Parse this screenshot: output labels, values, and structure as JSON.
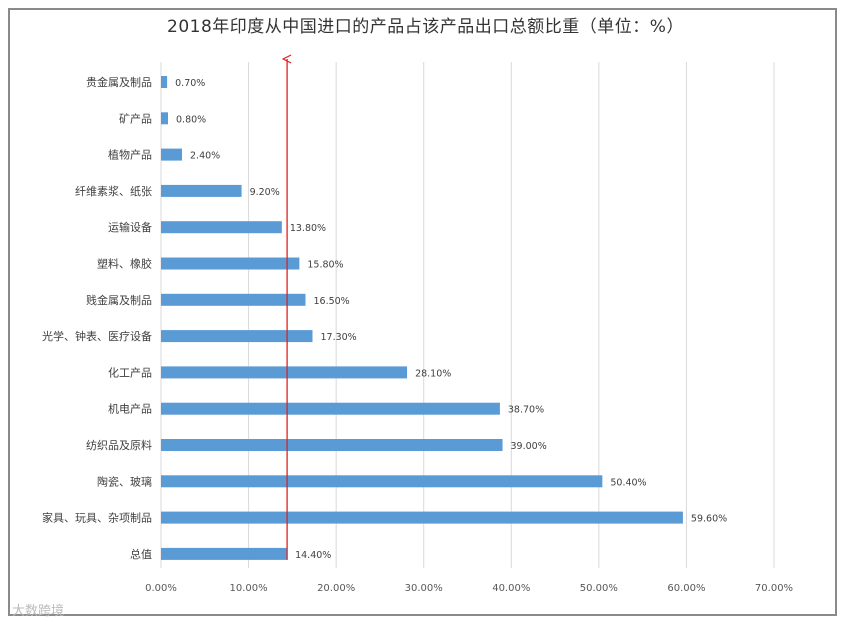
{
  "chart_data": {
    "type": "bar",
    "orientation": "horizontal",
    "title": "2018年印度从中国进口的产品占该产品出口总额比重（单位：%）",
    "categories": [
      "贵金属及制品",
      "矿产品",
      "植物产品",
      "纤维素浆、纸张",
      "运输设备",
      "塑料、橡胶",
      "贱金属及制品",
      "光学、钟表、医疗设备",
      "化工产品",
      "机电产品",
      "纺织品及原料",
      "陶瓷、玻璃",
      "家具、玩具、杂项制品",
      "总值"
    ],
    "values": [
      0.7,
      0.8,
      2.4,
      9.2,
      13.8,
      15.8,
      16.5,
      17.3,
      28.1,
      38.7,
      39.0,
      50.4,
      59.6,
      14.4
    ],
    "data_labels": [
      "0.70%",
      "0.80%",
      "2.40%",
      "9.20%",
      "13.80%",
      "15.80%",
      "16.50%",
      "17.30%",
      "28.10%",
      "38.70%",
      "39.00%",
      "50.40%",
      "59.60%",
      "14.40%"
    ],
    "xlim": [
      0,
      70
    ],
    "xticks": [
      "0.00%",
      "10.00%",
      "20.00%",
      "30.00%",
      "40.00%",
      "50.00%",
      "60.00%",
      "70.00%"
    ],
    "reference_line_value": 14.4,
    "grid": true,
    "bar_color": "#5b9bd5",
    "reference_line_color": "#e02020"
  },
  "watermark": "大数跨境"
}
